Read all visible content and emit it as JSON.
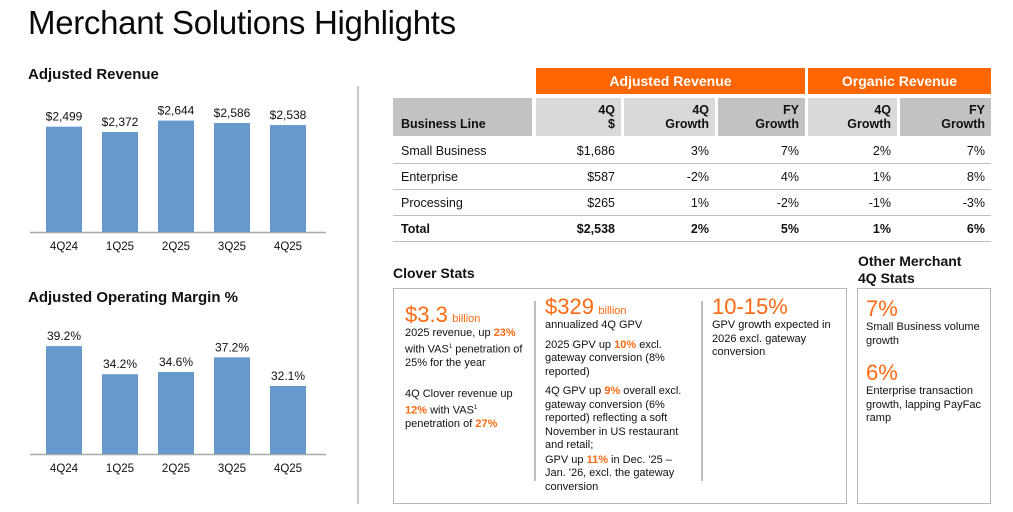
{
  "page": {
    "title": "Merchant Solutions Highlights"
  },
  "colors": {
    "accent": "#ff6600",
    "bar": "#6699cc",
    "header_dark": "#c2c2c2",
    "header_light": "#d9d9d9"
  },
  "chart_data": [
    {
      "type": "bar",
      "title": "Adjusted Revenue",
      "categories": [
        "4Q24",
        "1Q25",
        "2Q25",
        "3Q25",
        "4Q25"
      ],
      "values": [
        2499,
        2372,
        2644,
        2586,
        2538
      ],
      "labels": [
        "$2,499",
        "$2,372",
        "$2,644",
        "$2,586",
        "$2,538"
      ],
      "xlabel": "",
      "ylabel": "",
      "ylim": [
        0,
        2800
      ],
      "grid": false
    },
    {
      "type": "bar",
      "title": "Adjusted Operating Margin %",
      "categories": [
        "4Q24",
        "1Q25",
        "2Q25",
        "3Q25",
        "4Q25"
      ],
      "values": [
        39.2,
        34.2,
        34.6,
        37.2,
        32.1
      ],
      "labels": [
        "39.2%",
        "34.2%",
        "34.6%",
        "37.2%",
        "32.1%"
      ],
      "xlabel": "",
      "ylabel": "",
      "ylim": [
        20,
        41
      ],
      "grid": false
    }
  ],
  "table": {
    "group_headers": [
      "Adjusted Revenue",
      "Organic Revenue"
    ],
    "columns": [
      {
        "line1": "",
        "line2": "Business Line"
      },
      {
        "line1": "4Q",
        "line2": "$"
      },
      {
        "line1": "4Q",
        "line2": "Growth"
      },
      {
        "line1": "FY",
        "line2": "Growth"
      },
      {
        "line1": "4Q",
        "line2": "Growth"
      },
      {
        "line1": "FY",
        "line2": "Growth"
      }
    ],
    "rows": [
      [
        "Small Business",
        "$1,686",
        "3%",
        "7%",
        "2%",
        "7%"
      ],
      [
        "Enterprise",
        "$587",
        "-2%",
        "4%",
        "1%",
        "8%"
      ],
      [
        "Processing",
        "$265",
        "1%",
        "-2%",
        "-1%",
        "-3%"
      ],
      [
        "Total",
        "$2,538",
        "2%",
        "5%",
        "1%",
        "6%"
      ]
    ]
  },
  "clover": {
    "title": "Clover Stats",
    "col1": {
      "big": "$3.3",
      "unit": "billion",
      "p1": {
        "a": "2025 revenue, up ",
        "hl": "23%",
        "b": " with VAS",
        "sup": "1",
        "c": " penetration of 25% for the year"
      },
      "p2": {
        "a": "4Q Clover revenue up ",
        "hl": "12%",
        "b": " with VAS",
        "sup": "1",
        "c": " penetration of ",
        "hl2": "27%"
      }
    },
    "col2": {
      "big": "$329",
      "unit": "billion",
      "sub": "annualized 4Q GPV",
      "p1": {
        "a": "2025 GPV up ",
        "hl": "10%",
        "b": " excl. gateway conversion (8% reported)"
      },
      "p2": {
        "a": "4Q GPV up ",
        "hl": "9%",
        "b": " overall excl. gateway conversion (6% reported) reflecting a soft November in US restaurant and retail;"
      },
      "p3": {
        "a": "GPV up ",
        "hl": "11%",
        "b": " in Dec. '25 – Jan. '26, excl. the gateway conversion"
      }
    },
    "col3": {
      "big": "10-15%",
      "text": "GPV growth expected in 2026 excl. gateway conversion"
    }
  },
  "other": {
    "title_line1": "Other Merchant",
    "title_line2": "4Q Stats",
    "stat1": {
      "big": "7%",
      "text": "Small Business volume growth"
    },
    "stat2": {
      "big": "6%",
      "text": "Enterprise transaction growth, lapping PayFac ramp"
    }
  }
}
